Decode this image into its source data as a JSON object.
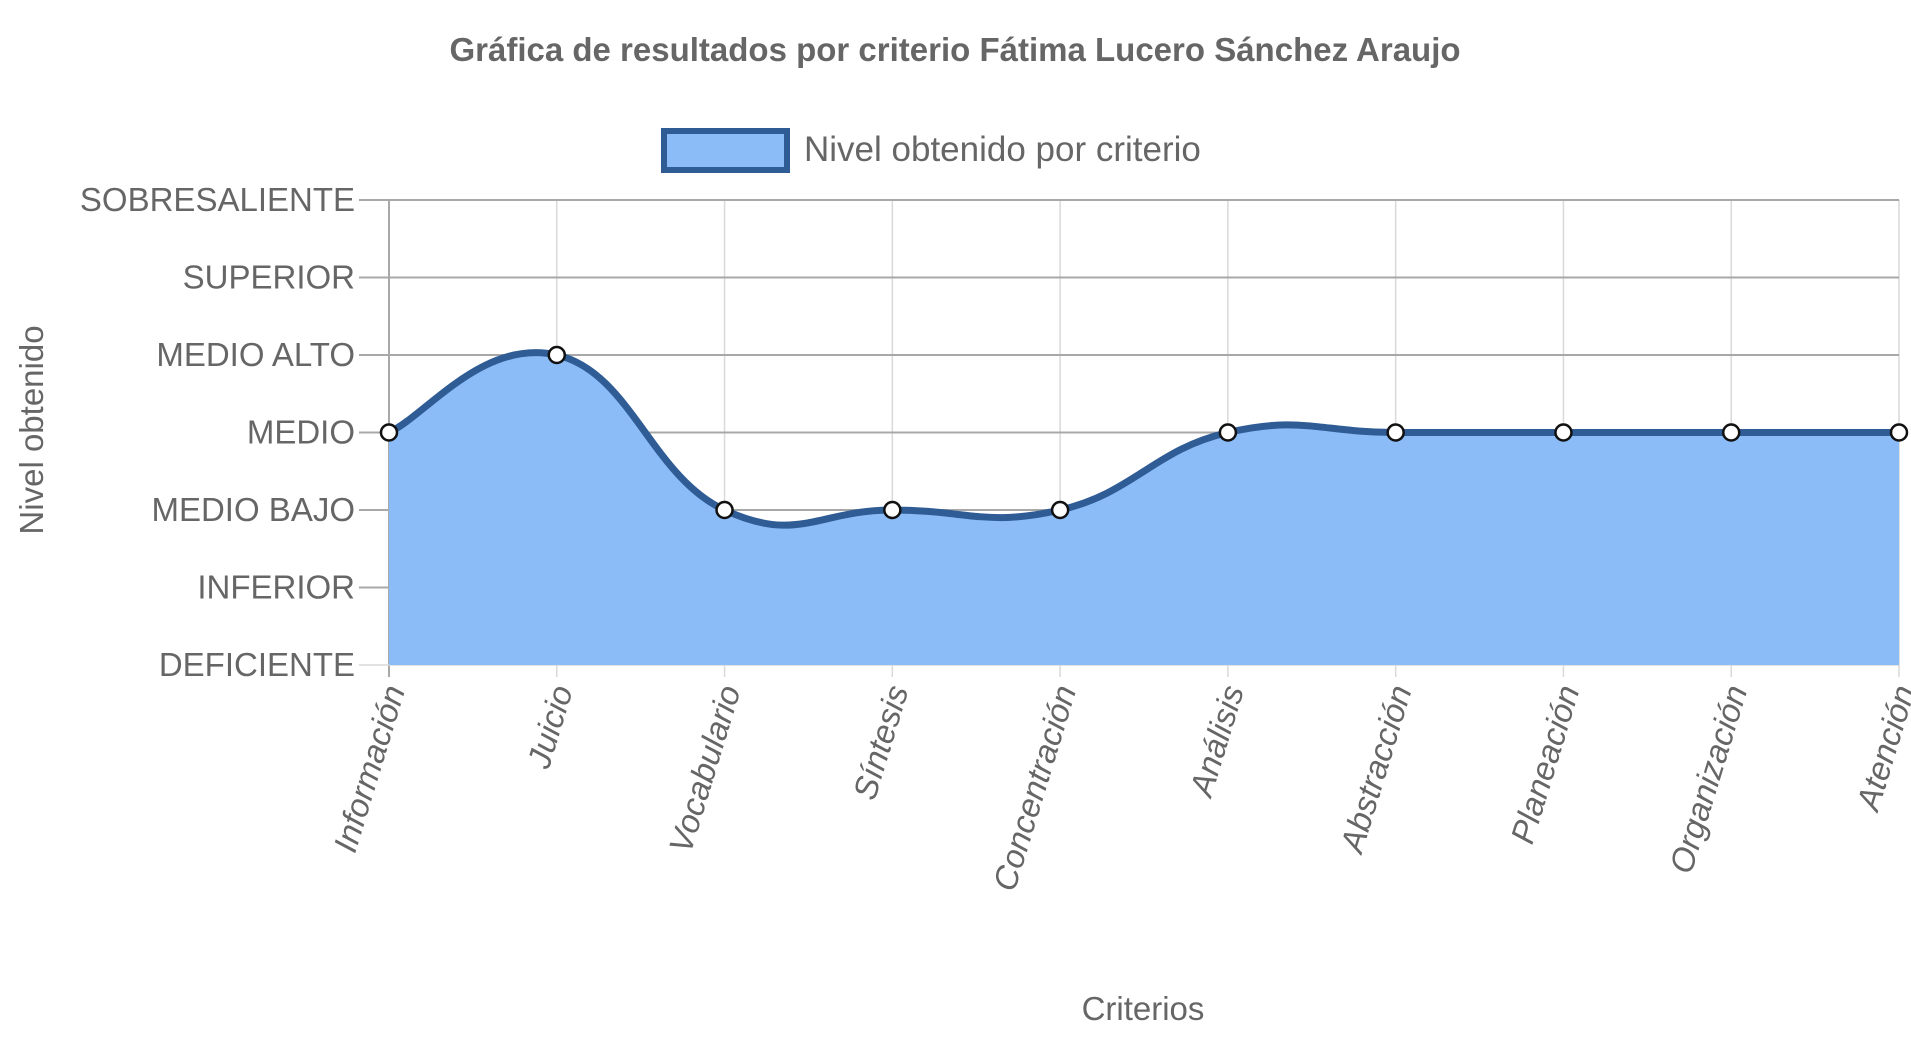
{
  "chart_data": {
    "type": "area",
    "title": "Gráfica de resultados por criterio Fátima Lucero Sánchez Araujo",
    "xlabel": "Criterios",
    "ylabel": "Nivel obtenido",
    "y_levels": [
      "DEFICIENTE",
      "INFERIOR",
      "MEDIO BAJO",
      "MEDIO",
      "MEDIO ALTO",
      "SUPERIOR",
      "SOBRESALIENTE"
    ],
    "ylim": [
      0,
      6
    ],
    "categories": [
      "Información",
      "Juicio",
      "Vocabulario",
      "Síntesis",
      "Concentración",
      "Análisis",
      "Abstracción",
      "Planeación",
      "Organización",
      "Atención"
    ],
    "series": [
      {
        "name": "Nivel obtenido por criterio",
        "values": [
          3,
          4,
          2,
          2,
          2,
          3,
          3,
          3,
          3,
          3
        ]
      }
    ],
    "legend_position": "top",
    "grid": true,
    "colors": {
      "fill": "#8bbcf7",
      "line": "#2f5c95",
      "grid": "#d9d9d9",
      "axis": "#a8a8a8",
      "point_fill": "#ffffff",
      "point_stroke": "#111111"
    }
  }
}
